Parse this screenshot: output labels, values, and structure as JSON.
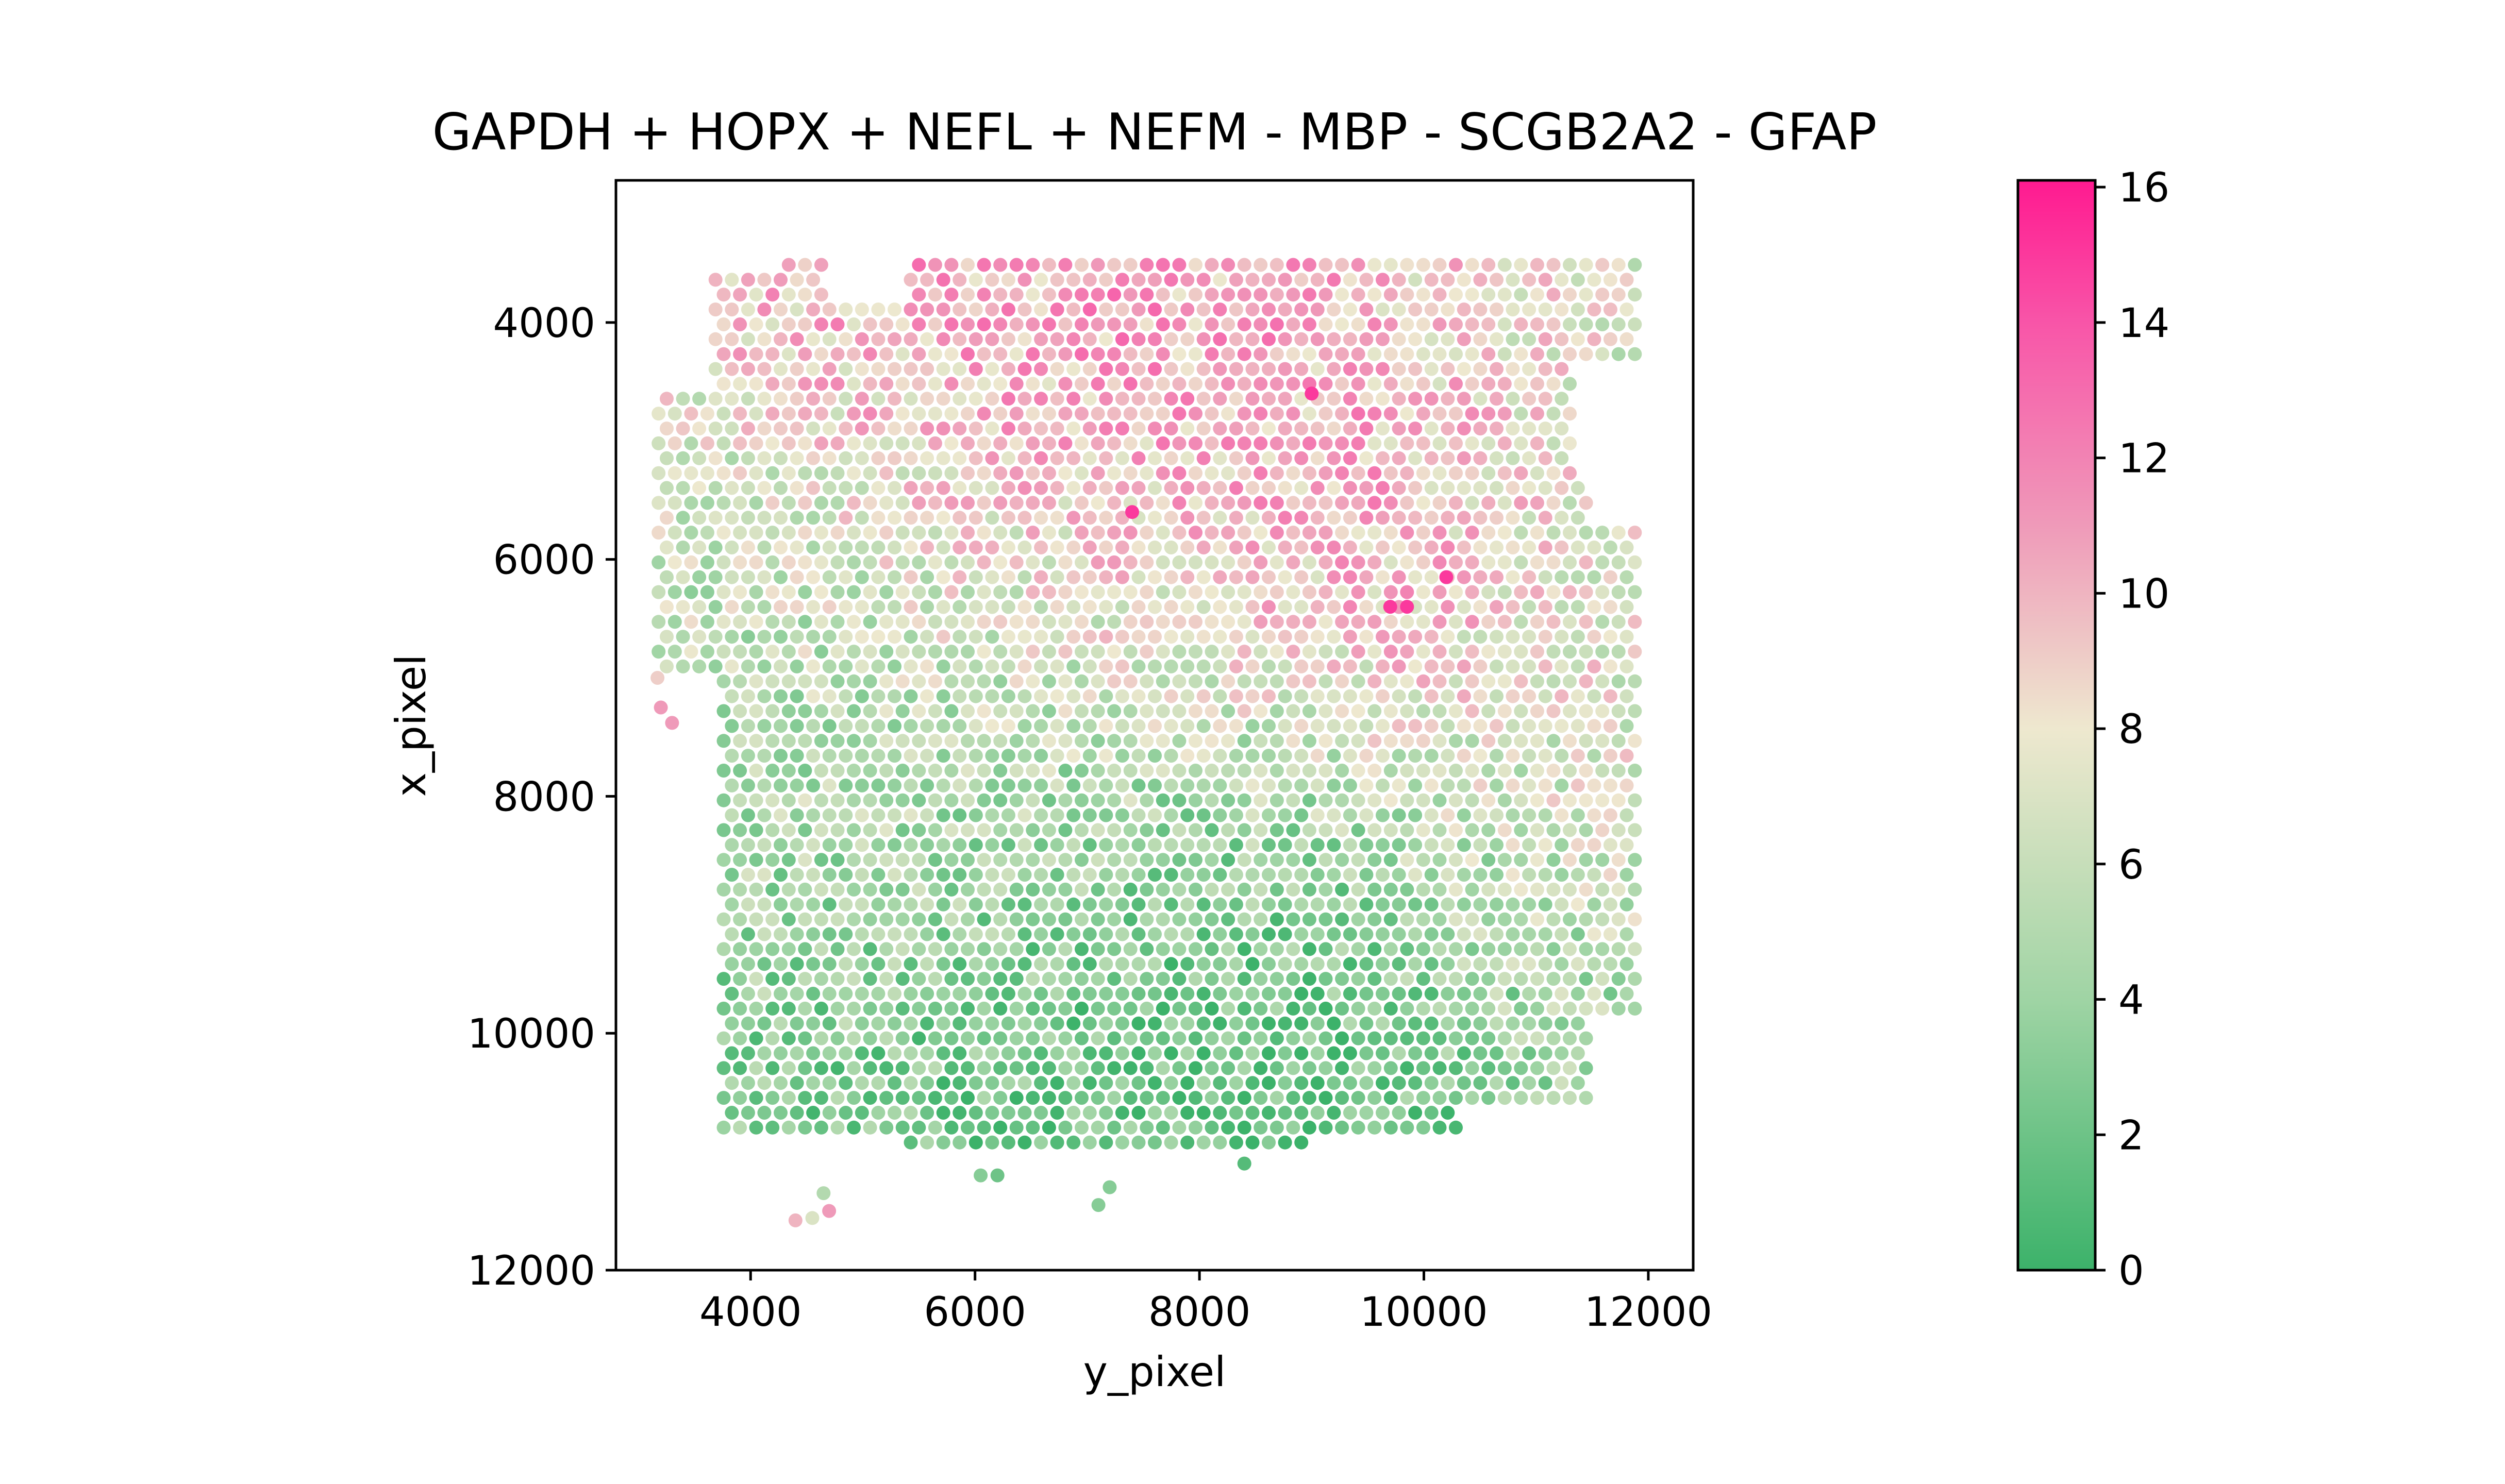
{
  "chart_data": {
    "type": "scatter",
    "title": "GAPDH + HOPX + NEFL + NEFM - MBP - SCGB2A2 - GFAP",
    "xlabel": "y_pixel",
    "ylabel": "x_pixel",
    "xlim": [
      2800,
      12400
    ],
    "ylim": [
      12000,
      2800
    ],
    "y_inverted": true,
    "xticks": [
      "4000",
      "6000",
      "8000",
      "10000",
      "12000"
    ],
    "yticks": [
      "4000",
      "6000",
      "8000",
      "10000",
      "12000"
    ],
    "grid": false,
    "spot_spacing": 145,
    "regions": [
      {
        "x": 7700,
        "y": 9900,
        "value": 1.2,
        "radius": 2600
      },
      {
        "x": 8500,
        "y": 9600,
        "value": 1.0,
        "radius": 1800
      },
      {
        "x": 6800,
        "y": 10400,
        "value": 2.0,
        "radius": 1700
      },
      {
        "x": 4600,
        "y": 8800,
        "value": 4.0,
        "radius": 1800
      },
      {
        "x": 4400,
        "y": 6900,
        "value": 5.5,
        "radius": 1500
      },
      {
        "x": 3500,
        "y": 5900,
        "value": 6.0,
        "radius": 900
      },
      {
        "x": 6500,
        "y": 4500,
        "value": 11.5,
        "radius": 1700
      },
      {
        "x": 8000,
        "y": 5500,
        "value": 11.0,
        "radius": 1800
      },
      {
        "x": 9800,
        "y": 6300,
        "value": 13.0,
        "radius": 1300
      },
      {
        "x": 9000,
        "y": 4000,
        "value": 10.5,
        "radius": 1600
      },
      {
        "x": 11300,
        "y": 3700,
        "value": 6.0,
        "radius": 1400
      },
      {
        "x": 11500,
        "y": 5800,
        "value": 5.5,
        "radius": 900
      },
      {
        "x": 11600,
        "y": 8000,
        "value": 8.5,
        "radius": 1100
      },
      {
        "x": 10800,
        "y": 8600,
        "value": 6.0,
        "radius": 1300
      },
      {
        "x": 6000,
        "y": 7600,
        "value": 7.0,
        "radius": 1600
      },
      {
        "x": 4800,
        "y": 3700,
        "value": 10.0,
        "radius": 1100
      },
      {
        "x": 11600,
        "y": 10000,
        "value": 5.0,
        "radius": 1000
      }
    ],
    "outliers": [
      {
        "x": 3200,
        "y": 7250,
        "value": 11
      },
      {
        "x": 3300,
        "y": 7380,
        "value": 11
      },
      {
        "x": 3170,
        "y": 7000,
        "value": 9
      },
      {
        "x": 4400,
        "y": 11580,
        "value": 10
      },
      {
        "x": 4550,
        "y": 11560,
        "value": 7
      },
      {
        "x": 4700,
        "y": 11500,
        "value": 11
      },
      {
        "x": 4650,
        "y": 11350,
        "value": 5
      },
      {
        "x": 7100,
        "y": 11450,
        "value": 3
      },
      {
        "x": 7200,
        "y": 11300,
        "value": 3
      },
      {
        "x": 6050,
        "y": 11200,
        "value": 3
      },
      {
        "x": 6200,
        "y": 11200,
        "value": 2
      },
      {
        "x": 8400,
        "y": 11100,
        "value": 1
      },
      {
        "x": 9000,
        "y": 4600,
        "value": 15
      },
      {
        "x": 7400,
        "y": 5600,
        "value": 15
      },
      {
        "x": 9850,
        "y": 6400,
        "value": 15
      },
      {
        "x": 10200,
        "y": 6150,
        "value": 15
      },
      {
        "x": 9700,
        "y": 6400,
        "value": 15
      }
    ],
    "colorbar": {
      "vmin": 0,
      "vmax": 16.1,
      "ticks": [
        "0",
        "2",
        "4",
        "6",
        "8",
        "10",
        "12",
        "14",
        "16"
      ],
      "colormap": [
        {
          "value": 0,
          "color": "#3cb26a"
        },
        {
          "value": 4,
          "color": "#9fd4a4"
        },
        {
          "value": 8,
          "color": "#eee8cf"
        },
        {
          "value": 11,
          "color": "#ef9ab9"
        },
        {
          "value": 14,
          "color": "#f855a8"
        },
        {
          "value": 16.1,
          "color": "#ff1a90"
        }
      ]
    }
  }
}
